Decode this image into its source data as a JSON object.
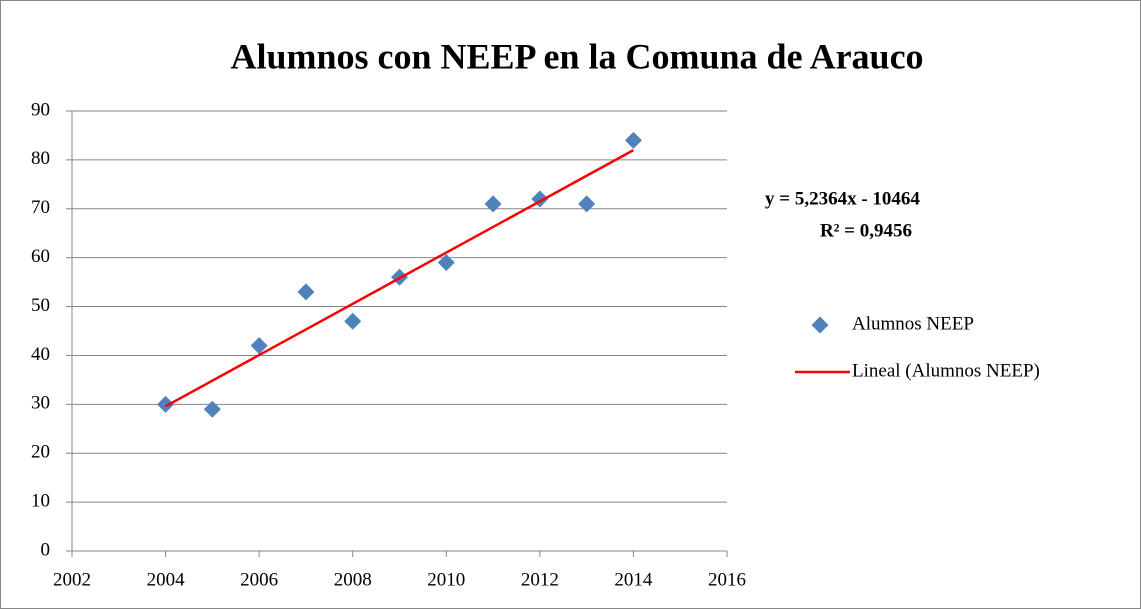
{
  "chart_data": {
    "type": "scatter",
    "title": "Alumnos con NEEP en la Comuna de Arauco",
    "series": [
      {
        "name": "Alumnos NEEP",
        "color": "#4f81bd",
        "marker": "diamond",
        "x": [
          2004,
          2005,
          2006,
          2007,
          2008,
          2009,
          2010,
          2011,
          2012,
          2013,
          2014
        ],
        "values": [
          30,
          29,
          42,
          53,
          47,
          56,
          59,
          71,
          72,
          71,
          84
        ]
      },
      {
        "name": "Lineal (Alumnos NEEP)",
        "color": "#ff0000",
        "type": "line",
        "x": [
          2004,
          2014
        ],
        "values": [
          29.6,
          82.0
        ]
      }
    ],
    "annotations": [
      "y = 5,2364x - 10464",
      "R² = 0,9456"
    ],
    "xlim": [
      2002,
      2016
    ],
    "xticks": [
      2002,
      2004,
      2006,
      2008,
      2010,
      2012,
      2014,
      2016
    ],
    "ylim": [
      0,
      90
    ],
    "yticks": [
      0,
      10,
      20,
      30,
      40,
      50,
      60,
      70,
      80,
      90
    ],
    "grid": true,
    "legend": "right"
  }
}
